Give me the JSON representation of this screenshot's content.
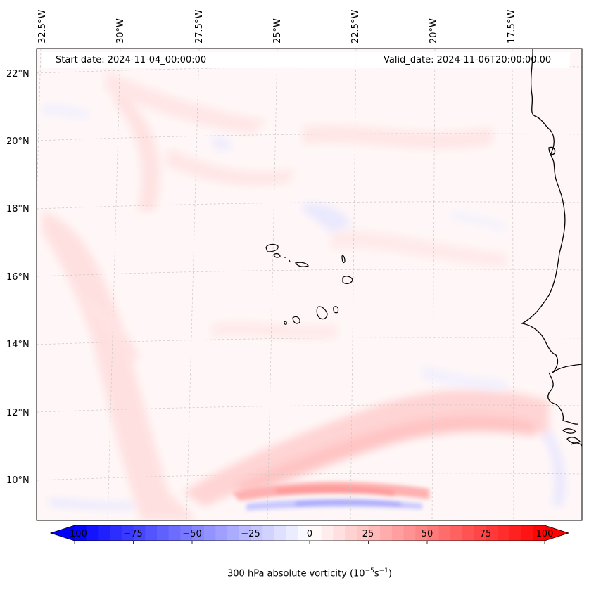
{
  "map": {
    "start_label": "Start date: 2024-11-04_00:00:00",
    "valid_label": "Valid_date: 2024-11-06T20:00:00.00",
    "lon_labels": [
      "32.5°W",
      "30°W",
      "27.5°W",
      "25°W",
      "22.5°W",
      "20°W",
      "17.5°W"
    ],
    "lat_labels": [
      "22°N",
      "20°N",
      "18°N",
      "16°N",
      "14°N",
      "12°N",
      "10°N"
    ],
    "colors": {
      "positive_max": "#ff0000",
      "negative_max": "#0000ff",
      "neutral": "#ffffff",
      "coastline": "#000000",
      "gridline": "#c8c8c8"
    }
  },
  "colorbar": {
    "ticks": [
      "−100",
      "−75",
      "−50",
      "−25",
      "0",
      "25",
      "50",
      "75",
      "100"
    ],
    "label": "300 hPa absolute vorticity (10",
    "label_exp1": "−5",
    "label_mid": "s",
    "label_exp2": "−1",
    "label_end": ")",
    "range": [
      -100,
      100
    ],
    "cmap": "bwr"
  }
}
